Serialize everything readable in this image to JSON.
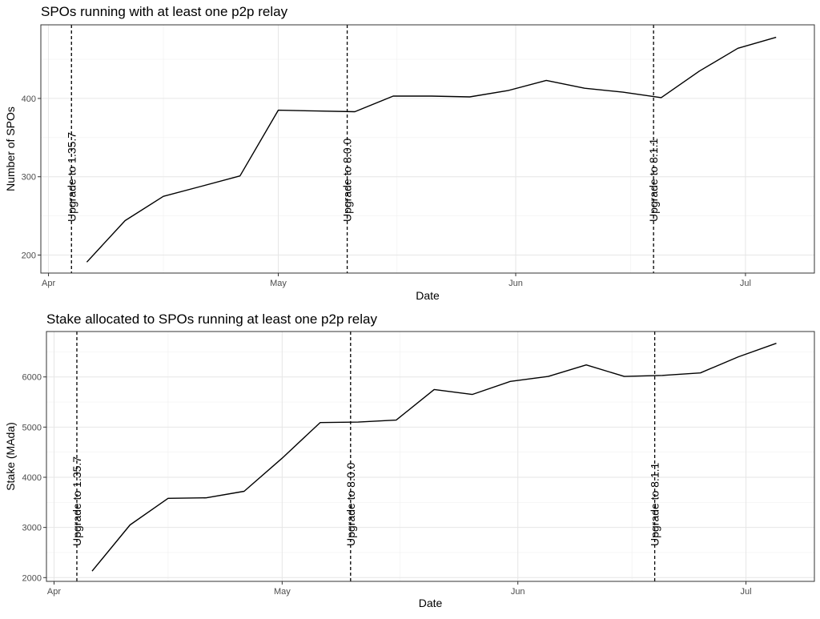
{
  "chart_data": [
    {
      "type": "line",
      "title": "SPOs running with at least one p2p relay",
      "xlabel": "Date",
      "ylabel": "Number of SPOs",
      "x_tick_labels": [
        "Apr",
        "May",
        "Jun",
        "Jul"
      ],
      "x_ticks": [
        "2022-04-01",
        "2022-05-01",
        "2022-06-01",
        "2022-07-01"
      ],
      "xlim": [
        "2022-03-31",
        "2022-07-10"
      ],
      "y_ticks": [
        200,
        300,
        400
      ],
      "ylim": [
        177,
        494
      ],
      "grid": true,
      "series": [
        {
          "x": [
            "2022-04-06",
            "2022-04-11",
            "2022-04-16",
            "2022-04-21",
            "2022-04-26",
            "2022-05-01",
            "2022-05-06",
            "2022-05-11",
            "2022-05-16",
            "2022-05-21",
            "2022-05-26",
            "2022-05-31",
            "2022-06-05",
            "2022-06-10",
            "2022-06-15",
            "2022-06-20",
            "2022-06-25",
            "2022-06-30",
            "2022-07-05"
          ],
          "values": [
            191,
            244,
            275,
            288,
            301,
            385,
            384,
            383,
            403,
            403,
            402,
            410,
            423,
            413,
            408,
            401,
            435,
            464,
            478
          ],
          "color": "#000000"
        }
      ],
      "vlines": [
        {
          "x": "2022-04-04",
          "label": "Upgrade to 1.35.7"
        },
        {
          "x": "2022-05-10",
          "label": "Upgrade to 8.0.0"
        },
        {
          "x": "2022-06-19",
          "label": "Upgrade to 8.1.1"
        }
      ]
    },
    {
      "type": "line",
      "title": "Stake allocated to SPOs running at least one p2p relay",
      "xlabel": "Date",
      "ylabel": "Stake (MAda)",
      "x_tick_labels": [
        "Apr",
        "May",
        "Jun",
        "Jul"
      ],
      "x_ticks": [
        "2022-04-01",
        "2022-05-01",
        "2022-06-01",
        "2022-07-01"
      ],
      "xlim": [
        "2022-03-31",
        "2022-07-10"
      ],
      "y_ticks": [
        2000,
        3000,
        4000,
        5000,
        6000
      ],
      "ylim": [
        1925,
        6905
      ],
      "grid": true,
      "series": [
        {
          "x": [
            "2022-04-06",
            "2022-04-11",
            "2022-04-16",
            "2022-04-21",
            "2022-04-26",
            "2022-05-01",
            "2022-05-06",
            "2022-05-11",
            "2022-05-16",
            "2022-05-21",
            "2022-05-26",
            "2022-05-31",
            "2022-06-05",
            "2022-06-10",
            "2022-06-15",
            "2022-06-20",
            "2022-06-25",
            "2022-06-30",
            "2022-07-05"
          ],
          "values": [
            2130,
            3050,
            3580,
            3590,
            3720,
            4380,
            5090,
            5100,
            5140,
            5750,
            5650,
            5910,
            6010,
            6240,
            6010,
            6030,
            6080,
            6400,
            6670
          ],
          "color": "#000000"
        }
      ],
      "vlines": [
        {
          "x": "2022-04-04",
          "label": "Upgrade to 1.35.7"
        },
        {
          "x": "2022-05-10",
          "label": "Upgrade to 8.0.0"
        },
        {
          "x": "2022-06-19",
          "label": "Upgrade to 8.1.1"
        }
      ]
    }
  ]
}
